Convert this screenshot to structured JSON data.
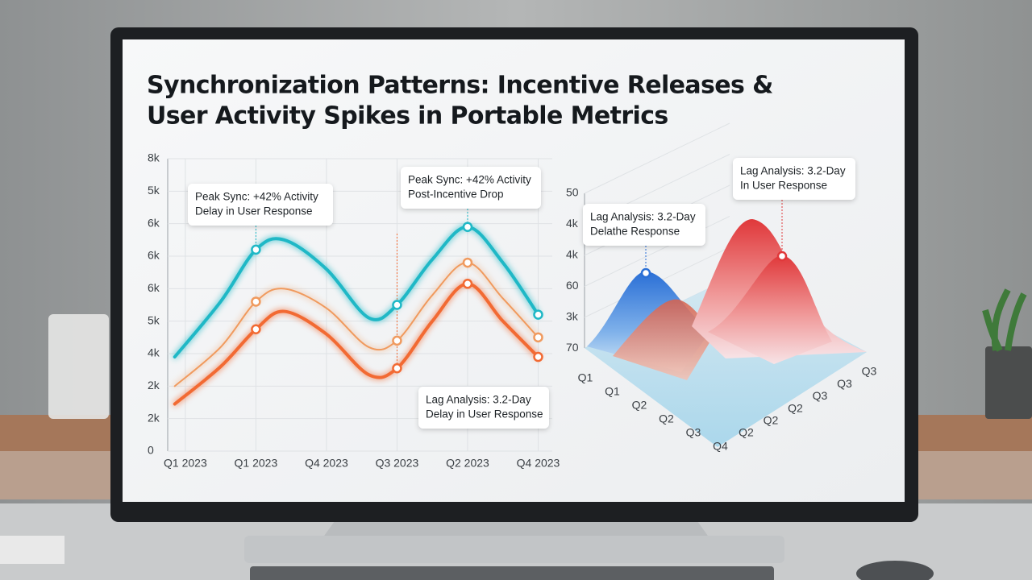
{
  "page_title": [
    "Synchronization Patterns: Incentive Releases &",
    "User Activity Spikes in Portable Metrics"
  ],
  "chart_data": [
    {
      "type": "line",
      "x": [
        -0.15,
        0.5,
        1,
        1.4,
        2,
        2.6,
        3,
        3.5,
        4,
        4.5,
        5
      ],
      "xlim": [
        -0.25,
        5.2
      ],
      "xticks": [
        {
          "value": 0,
          "label": "Q1 2023"
        },
        {
          "value": 1,
          "label": "Q1 2023"
        },
        {
          "value": 2,
          "label": "Q4 2023"
        },
        {
          "value": 3,
          "label": "Q3 2023"
        },
        {
          "value": 4,
          "label": "Q2 2023"
        },
        {
          "value": 5,
          "label": "Q4 2023"
        }
      ],
      "ylim": [
        0,
        9
      ],
      "yticks": [
        0,
        {
          "value": 1,
          "label": "2k"
        },
        {
          "value": 2,
          "label": "2k"
        },
        {
          "value": 3,
          "label": "4k"
        },
        {
          "value": 4,
          "label": "5k"
        },
        {
          "value": 5,
          "label": "6k"
        },
        {
          "value": 6,
          "label": "6k"
        },
        {
          "value": 7,
          "label": "6k"
        },
        {
          "value": 8,
          "label": "5k"
        },
        {
          "value": 9,
          "label": "8k"
        }
      ],
      "grid": true,
      "marker_x": [
        1,
        3,
        4,
        5
      ],
      "series": [
        {
          "color": "#1fb8c6",
          "line_width": 4,
          "values": [
            2.9,
            4.6,
            6.2,
            6.5,
            5.6,
            4.1,
            4.5,
            5.9,
            6.9,
            5.8,
            4.2
          ]
        },
        {
          "color": "#f09a5e",
          "line_width": 2,
          "values": [
            2.0,
            3.2,
            4.6,
            5.0,
            4.4,
            3.2,
            3.4,
            4.8,
            5.8,
            4.7,
            3.5
          ]
        },
        {
          "color": "#f26a33",
          "line_width": 4,
          "values": [
            1.45,
            2.6,
            3.75,
            4.3,
            3.6,
            2.35,
            2.55,
            4.0,
            5.15,
            4.0,
            2.9
          ]
        }
      ],
      "annotations": [
        {
          "lines": [
            "Peak Sync: +42% Activity",
            "Delay in User Response"
          ]
        },
        {
          "lines": [
            "Peak Sync: +42% Activity",
            "Post-Incentive Drop"
          ]
        },
        {
          "lines": [
            "Lag Analysis: 3.2-Day",
            "Delay in User Response"
          ]
        }
      ]
    },
    {
      "type": "surface",
      "ytick_labels": [
        "50",
        "4k",
        "4k",
        "60",
        "3k",
        "70"
      ],
      "front_labels": [
        "Q1",
        "Q1",
        "Q2",
        "Q2",
        "Q3",
        "Q4"
      ],
      "right_labels": [
        "Q3",
        "Q3",
        "Q3",
        "Q2",
        "Q2",
        "Q2"
      ],
      "annotations": [
        {
          "lines": [
            "Lag Analysis: 3.2-Day",
            "Delathe Response"
          ]
        },
        {
          "lines": [
            "Lag Analysis: 3.2-Day",
            "In User Response"
          ]
        }
      ]
    }
  ]
}
